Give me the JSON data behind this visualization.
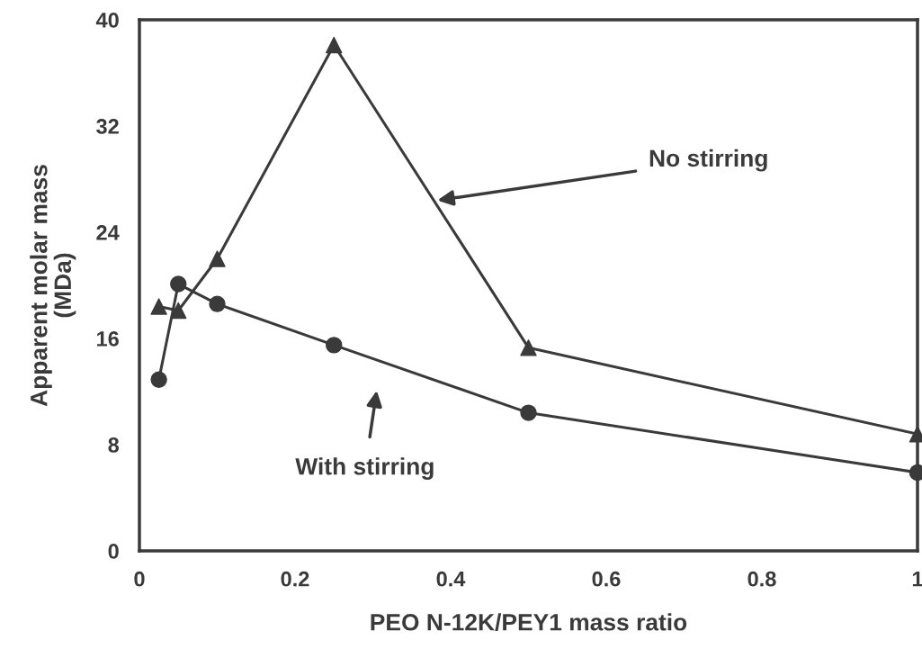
{
  "chart_data": {
    "type": "line",
    "xlabel": "PEO N-12K/PEY1 mass ratio",
    "ylabel": "Apparent molar mass\n(MDa)",
    "xlim": [
      0,
      1
    ],
    "xticks": [
      0,
      {
        "value": 0.2,
        "label": "0.2"
      },
      {
        "value": 0.4,
        "label": "0.4"
      },
      {
        "value": 0.6,
        "label": "0.6"
      },
      {
        "value": 0.8,
        "label": "0.8"
      },
      1
    ],
    "ylim": [
      0,
      40
    ],
    "yticks": [
      0,
      8,
      16,
      24,
      32,
      40
    ],
    "grid": false,
    "legend": false,
    "series": [
      {
        "color": "#3a3a3a",
        "marker": "triangle",
        "x": [
          0.025,
          0.05,
          0.1,
          0.25,
          0.5,
          1.0
        ],
        "values": [
          18.4,
          18.1,
          22.0,
          38.1,
          15.3,
          8.8
        ]
      },
      {
        "color": "#3a3a3a",
        "marker": "circle",
        "x": [
          0.025,
          0.05,
          0.1,
          0.25,
          0.5,
          1.0
        ],
        "values": [
          12.9,
          20.1,
          18.6,
          15.5,
          10.4,
          5.9
        ]
      }
    ],
    "annotations": [
      {
        "text": "No stirring",
        "x": 0.383,
        "y": 26.4
      },
      "With stirring"
    ]
  }
}
